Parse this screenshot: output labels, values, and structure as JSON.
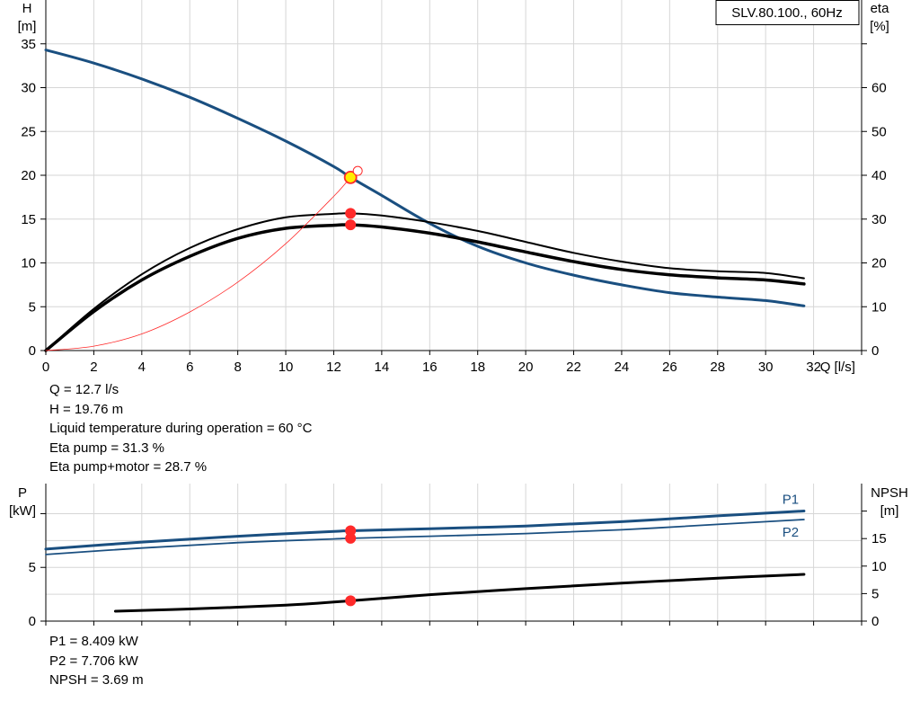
{
  "chart_data": [
    {
      "type": "line",
      "title": "",
      "legend_box": "SLV.80.100., 60Hz",
      "left_axis": {
        "name": "H",
        "unit": "[m]",
        "range": [
          0,
          40
        ],
        "ticks": [
          0,
          5,
          10,
          15,
          20,
          25,
          30,
          35
        ]
      },
      "right_axis": {
        "name": "eta",
        "unit": "[%]",
        "range": [
          0,
          80
        ],
        "ticks": [
          0,
          10,
          20,
          30,
          40,
          50,
          60
        ]
      },
      "x_axis": {
        "label": "Q [l/s]",
        "range": [
          0,
          34
        ],
        "ticks": [
          0,
          2,
          4,
          6,
          8,
          10,
          12,
          14,
          16,
          18,
          20,
          22,
          24,
          26,
          28,
          30,
          32
        ]
      },
      "grid": true,
      "series": [
        {
          "key": "H",
          "axis": "left",
          "color": "#1a4f80",
          "width": 3,
          "x": [
            0,
            2,
            4,
            6,
            8,
            10,
            12,
            12.7,
            14,
            16,
            18,
            20,
            22,
            24,
            26,
            28,
            30,
            31.6
          ],
          "y": [
            34.3,
            32.8,
            31.0,
            28.9,
            26.5,
            23.9,
            21.0,
            19.76,
            17.7,
            14.5,
            11.9,
            10.0,
            8.6,
            7.5,
            6.6,
            6.1,
            5.7,
            5.1
          ]
        },
        {
          "key": "eta_pump",
          "axis": "right",
          "color": "#000000",
          "width": 2,
          "x": [
            0,
            2,
            4,
            6,
            8,
            10,
            12,
            12.7,
            14,
            16,
            18,
            20,
            22,
            24,
            26,
            28,
            30,
            31.6
          ],
          "y": [
            0,
            9.5,
            17.4,
            23.4,
            27.7,
            30.4,
            31.2,
            31.3,
            30.8,
            29.3,
            27.3,
            24.8,
            22.3,
            20.3,
            18.8,
            18.1,
            17.7,
            16.5
          ]
        },
        {
          "key": "eta_pump_motor",
          "axis": "right",
          "color": "#000000",
          "width": 3.5,
          "x": [
            0,
            2,
            4,
            6,
            8,
            10,
            12,
            12.7,
            14,
            16,
            18,
            20,
            22,
            24,
            26,
            28,
            30,
            31.6
          ],
          "y": [
            0,
            8.9,
            16.1,
            21.5,
            25.6,
            27.9,
            28.6,
            28.7,
            28.2,
            26.8,
            24.8,
            22.5,
            20.3,
            18.5,
            17.3,
            16.6,
            16.1,
            15.2
          ]
        },
        {
          "key": "system_curve",
          "axis": "left",
          "color": "#ff2a2a",
          "width": 0.8,
          "x": [
            0,
            2,
            4,
            6,
            8,
            10,
            12,
            12.7,
            13.0
          ],
          "y": [
            0,
            0.5,
            1.9,
            4.4,
            7.8,
            12.2,
            17.6,
            19.76,
            20.5
          ]
        }
      ],
      "markers": [
        {
          "key": "duty_point",
          "x": 12.7,
          "y": 19.76,
          "axis": "left",
          "fill": "#ffee00",
          "stroke": "#ff2a2a"
        },
        {
          "key": "eta_pump_point",
          "x": 12.7,
          "y": 31.3,
          "axis": "right",
          "fill": "#ff2a2a"
        },
        {
          "key": "eta_pump_motor_point",
          "x": 12.7,
          "y": 28.7,
          "axis": "right",
          "fill": "#ff2a2a"
        },
        {
          "key": "system_end",
          "x": 13.0,
          "y": 20.5,
          "axis": "left",
          "fill": "#ffffff",
          "stroke": "#ff2a2a"
        }
      ]
    },
    {
      "type": "line",
      "title": "",
      "left_axis": {
        "name": "P",
        "unit": "[kW]",
        "range": [
          0,
          12.8
        ],
        "ticks": [
          0,
          5
        ]
      },
      "right_axis": {
        "name": "NPSH",
        "unit": "[m]",
        "range": [
          0,
          25
        ],
        "ticks": [
          0,
          5,
          10,
          15
        ]
      },
      "x_axis": {
        "range": [
          0,
          34
        ]
      },
      "grid": true,
      "series": [
        {
          "key": "P1",
          "name": "P1",
          "axis": "left",
          "color": "#1a4f80",
          "width": 3,
          "x": [
            0,
            4,
            8,
            12,
            12.7,
            16,
            20,
            24,
            28,
            31.6
          ],
          "y": [
            6.7,
            7.35,
            7.9,
            8.35,
            8.409,
            8.6,
            8.85,
            9.25,
            9.8,
            10.25
          ]
        },
        {
          "key": "P2",
          "name": "P2",
          "axis": "left",
          "color": "#1a4f80",
          "width": 1.8,
          "x": [
            0,
            4,
            8,
            12,
            12.7,
            16,
            20,
            24,
            28,
            31.6
          ],
          "y": [
            6.2,
            6.8,
            7.3,
            7.65,
            7.706,
            7.9,
            8.15,
            8.5,
            9.0,
            9.45
          ]
        },
        {
          "key": "NPSH",
          "axis": "right",
          "color": "#000000",
          "width": 3,
          "x": [
            2.9,
            6,
            10,
            12.7,
            16,
            20,
            24,
            28,
            31.6
          ],
          "y": [
            1.8,
            2.2,
            2.9,
            3.69,
            4.8,
            5.9,
            6.9,
            7.8,
            8.5
          ]
        }
      ],
      "markers": [
        {
          "key": "P1_point",
          "x": 12.7,
          "y": 8.409,
          "axis": "left",
          "fill": "#ff2a2a"
        },
        {
          "key": "P2_point",
          "x": 12.7,
          "y": 7.706,
          "axis": "left",
          "fill": "#ff2a2a"
        },
        {
          "key": "NPSH_point",
          "x": 12.7,
          "y": 3.69,
          "axis": "right",
          "fill": "#ff2a2a"
        }
      ]
    }
  ],
  "readout_top": {
    "q": "Q = 12.7 l/s",
    "h": "H = 19.76 m",
    "temp": "Liquid temperature during operation = 60 °C",
    "eta_pump": "Eta pump = 31.3 %",
    "eta_pump_motor": "Eta pump+motor = 28.7 %"
  },
  "readout_bottom": {
    "p1": "P1 = 8.409 kW",
    "p2": "P2 = 7.706 kW",
    "npsh": "NPSH = 3.69 m"
  }
}
